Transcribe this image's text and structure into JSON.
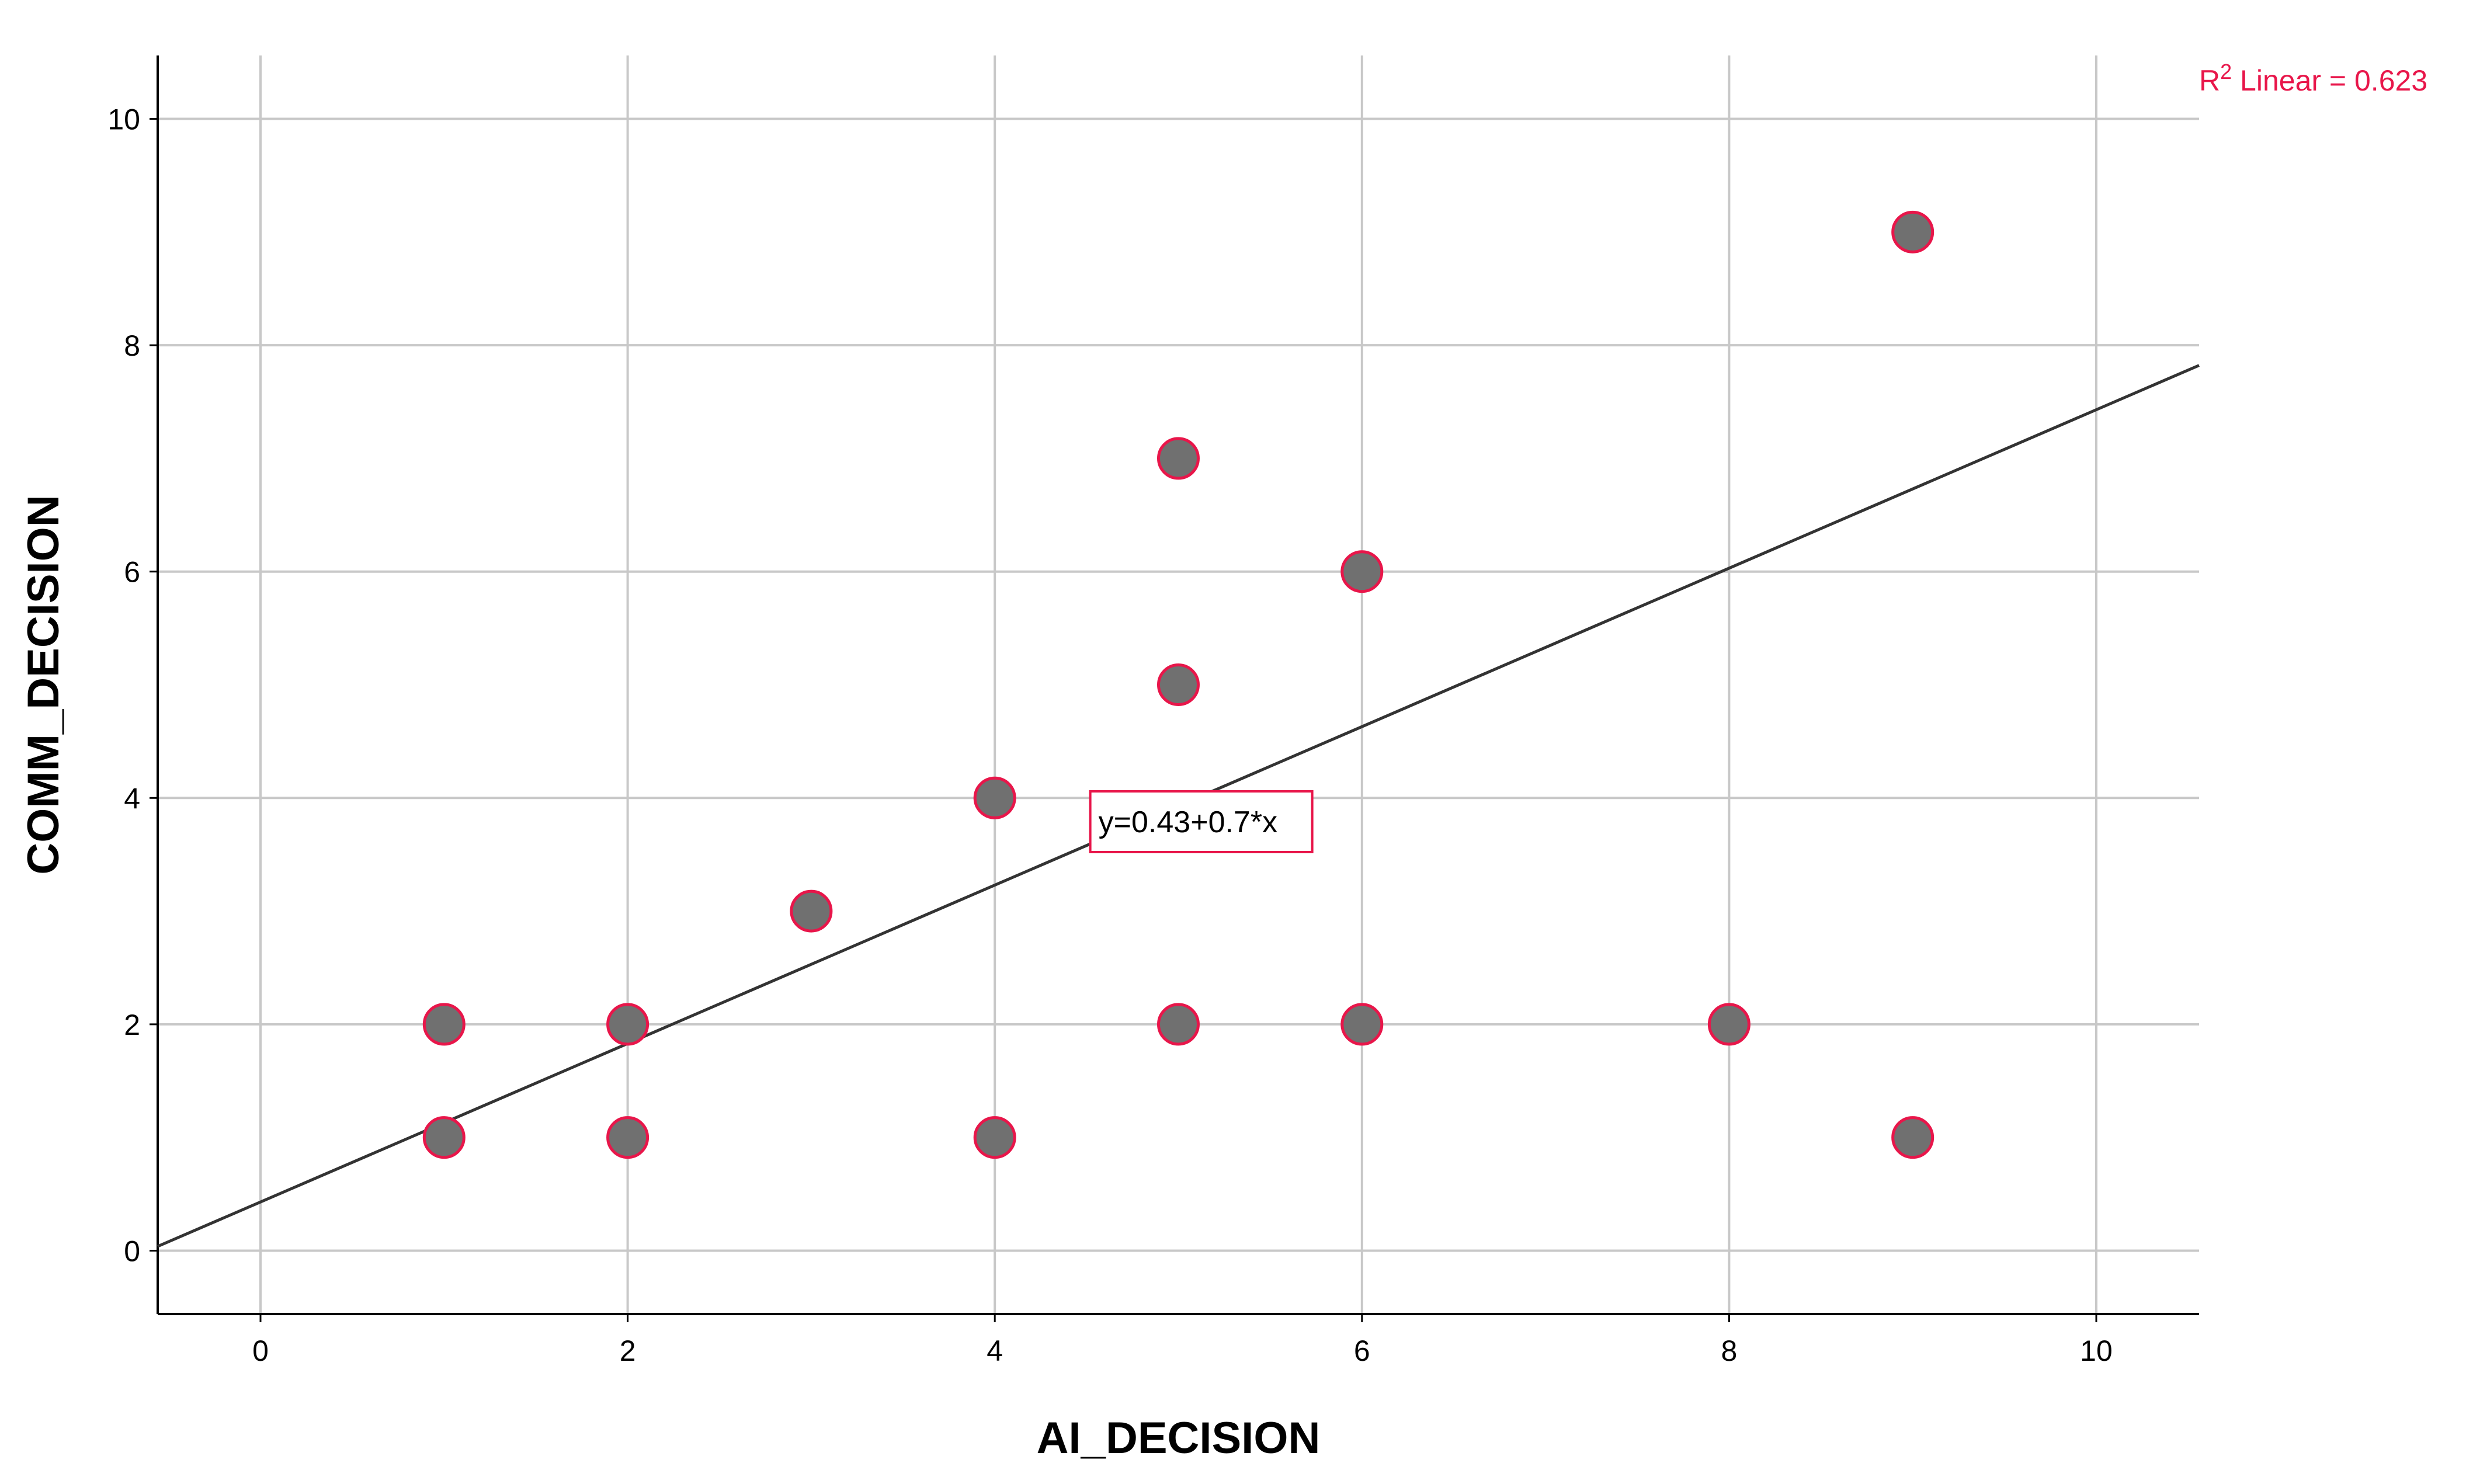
{
  "chart_data": {
    "type": "scatter",
    "title": "",
    "xlabel": "AI_DECISION",
    "ylabel": "COMM_DECISION",
    "xlim": [
      -0.56,
      10.56
    ],
    "ylim": [
      -0.56,
      10.56
    ],
    "x_ticks": [
      "0",
      "2",
      "4",
      "6",
      "8",
      "10"
    ],
    "y_ticks": [
      "0",
      "2",
      "4",
      "6",
      "8",
      "10"
    ],
    "grid": true,
    "points": [
      {
        "x": 1,
        "y": 2
      },
      {
        "x": 1,
        "y": 1
      },
      {
        "x": 2,
        "y": 2
      },
      {
        "x": 2,
        "y": 1
      },
      {
        "x": 3,
        "y": 3
      },
      {
        "x": 4,
        "y": 4
      },
      {
        "x": 4,
        "y": 1
      },
      {
        "x": 5,
        "y": 7
      },
      {
        "x": 5,
        "y": 5
      },
      {
        "x": 5,
        "y": 2
      },
      {
        "x": 6,
        "y": 6
      },
      {
        "x": 6,
        "y": 2
      },
      {
        "x": 8,
        "y": 2
      },
      {
        "x": 9,
        "y": 9
      },
      {
        "x": 9,
        "y": 1
      }
    ],
    "fit_line": {
      "intercept": 0.43,
      "slope": 0.7
    },
    "equation_label": "y=0.43+0.7*x",
    "r2_prefix": "R",
    "r2_superscript": "2",
    "r2_text": " Linear = 0.623",
    "colors": {
      "marker_fill": "#707070",
      "marker_edge": "#e8164a",
      "fit_line": "#333333",
      "grid": "#c8c8c8",
      "r2_text": "#e8164a",
      "label_box": "#e8164a"
    }
  }
}
